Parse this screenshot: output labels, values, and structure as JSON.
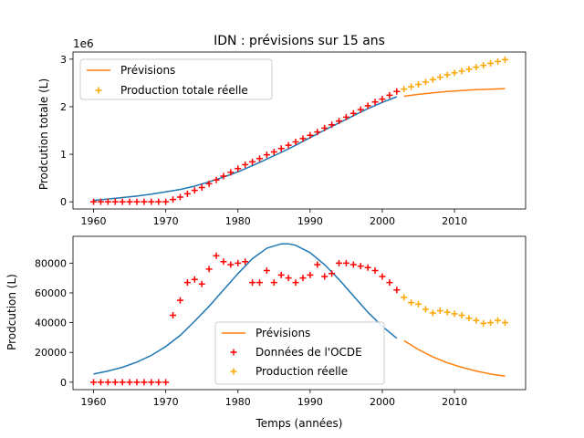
{
  "chart_data": [
    {
      "type": "line",
      "title": "IDN : prévisions sur 15 ans",
      "ylabel": "Prodcution totale (L)",
      "xlabel": "",
      "offset_label": "1e6",
      "xlim": [
        1957.15,
        2019.85
      ],
      "ylim": [
        -0.15,
        3.15
      ],
      "x_ticks": [
        1960,
        1970,
        1980,
        1990,
        2000,
        2010
      ],
      "x_tick_labels": [
        "1960",
        "1970",
        "1980",
        "1990",
        "2000",
        "2010"
      ],
      "y_ticks": [
        0,
        1,
        2,
        3
      ],
      "y_tick_labels": [
        "0",
        "1",
        "2",
        "3"
      ],
      "legend_position": "upper-left",
      "legend": [
        {
          "label": "Prévisions",
          "marker": "line",
          "color": "#ff7f0e"
        },
        {
          "label": "Production totale réelle",
          "marker": "plus",
          "color": "#ffa500"
        }
      ],
      "series": [
        {
          "name": "",
          "kind": "line",
          "color": "#1f77b4",
          "x": [
            1960,
            1962,
            1964,
            1966,
            1968,
            1970,
            1972,
            1974,
            1976,
            1978,
            1980,
            1982,
            1984,
            1986,
            1988,
            1990,
            1992,
            1994,
            1996,
            1998,
            2000,
            2002
          ],
          "y": [
            0.03,
            0.06,
            0.09,
            0.12,
            0.16,
            0.21,
            0.26,
            0.33,
            0.42,
            0.52,
            0.63,
            0.76,
            0.9,
            1.04,
            1.19,
            1.35,
            1.51,
            1.66,
            1.81,
            1.96,
            2.09,
            2.21
          ]
        },
        {
          "name": "Prévisions",
          "kind": "line",
          "color": "#ff7f0e",
          "x": [
            2003,
            2005,
            2007,
            2009,
            2011,
            2013,
            2015,
            2017
          ],
          "y": [
            2.22,
            2.26,
            2.29,
            2.32,
            2.34,
            2.36,
            2.37,
            2.38
          ]
        },
        {
          "name": "",
          "kind": "plus",
          "color": "#ff0000",
          "x": [
            1960,
            1961,
            1962,
            1963,
            1964,
            1965,
            1966,
            1967,
            1968,
            1969,
            1970,
            1971,
            1972,
            1973,
            1974,
            1975,
            1976,
            1977,
            1978,
            1979,
            1980,
            1981,
            1982,
            1983,
            1984,
            1985,
            1986,
            1987,
            1988,
            1989,
            1990,
            1991,
            1992,
            1993,
            1994,
            1995,
            1996,
            1997,
            1998,
            1999,
            2000,
            2001,
            2002
          ],
          "y": [
            0,
            0,
            0,
            0,
            0,
            0,
            0,
            0,
            0,
            0,
            0,
            0.05,
            0.1,
            0.17,
            0.24,
            0.3,
            0.38,
            0.46,
            0.54,
            0.62,
            0.7,
            0.78,
            0.84,
            0.91,
            0.99,
            1.05,
            1.12,
            1.19,
            1.26,
            1.33,
            1.4,
            1.47,
            1.55,
            1.62,
            1.7,
            1.78,
            1.86,
            1.94,
            2.02,
            2.1,
            2.16,
            2.24,
            2.32
          ]
        },
        {
          "name": "Production totale réelle",
          "kind": "plus",
          "color": "#ffa500",
          "x": [
            2003,
            2004,
            2005,
            2006,
            2007,
            2008,
            2009,
            2010,
            2011,
            2012,
            2013,
            2014,
            2015,
            2016,
            2017
          ],
          "y": [
            2.37,
            2.42,
            2.47,
            2.52,
            2.57,
            2.62,
            2.67,
            2.71,
            2.75,
            2.79,
            2.83,
            2.87,
            2.91,
            2.95,
            2.99
          ]
        }
      ]
    },
    {
      "type": "line",
      "title": "",
      "ylabel": "Prodcution (L)",
      "xlabel": "Temps (années)",
      "xlim": [
        1957.15,
        2019.85
      ],
      "ylim": [
        -5000,
        98000
      ],
      "x_ticks": [
        1960,
        1970,
        1980,
        1990,
        2000,
        2010
      ],
      "x_tick_labels": [
        "1960",
        "1970",
        "1980",
        "1990",
        "2000",
        "2010"
      ],
      "y_ticks": [
        0,
        20000,
        40000,
        60000,
        80000
      ],
      "y_tick_labels": [
        "0",
        "20000",
        "40000",
        "60000",
        "80000"
      ],
      "legend_position": "lower-center",
      "legend": [
        {
          "label": "Prévisions",
          "marker": "line",
          "color": "#ff7f0e"
        },
        {
          "label": "Données de l'OCDE",
          "marker": "plus",
          "color": "#ff0000"
        },
        {
          "label": "Production réelle",
          "marker": "plus",
          "color": "#ffa500"
        }
      ],
      "series": [
        {
          "name": "",
          "kind": "line",
          "color": "#1f77b4",
          "x": [
            1960,
            1962,
            1964,
            1966,
            1968,
            1970,
            1972,
            1974,
            1976,
            1978,
            1980,
            1982,
            1984,
            1986,
            1987,
            1988,
            1990,
            1992,
            1994,
            1996,
            1998,
            2000,
            2002
          ],
          "y": [
            5500,
            7500,
            10000,
            13500,
            18000,
            24000,
            31500,
            41000,
            51000,
            62000,
            73000,
            83000,
            90000,
            93000,
            93000,
            92000,
            87000,
            79000,
            69000,
            58000,
            47000,
            37500,
            29500
          ]
        },
        {
          "name": "Prévisions",
          "kind": "line",
          "color": "#ff7f0e",
          "x": [
            2003,
            2005,
            2007,
            2009,
            2011,
            2013,
            2015,
            2017
          ],
          "y": [
            28000,
            22000,
            17000,
            13000,
            10000,
            7500,
            5500,
            4000
          ]
        },
        {
          "name": "Données de l'OCDE",
          "kind": "plus",
          "color": "#ff0000",
          "x": [
            1960,
            1961,
            1962,
            1963,
            1964,
            1965,
            1966,
            1967,
            1968,
            1969,
            1970,
            1971,
            1972,
            1973,
            1974,
            1975,
            1976,
            1977,
            1978,
            1979,
            1980,
            1981,
            1982,
            1983,
            1984,
            1985,
            1986,
            1987,
            1988,
            1989,
            1990,
            1991,
            1992,
            1993,
            1994,
            1995,
            1996,
            1997,
            1998,
            1999,
            2000,
            2001,
            2002
          ],
          "y": [
            0,
            0,
            0,
            0,
            0,
            0,
            0,
            0,
            0,
            0,
            0,
            45000,
            55000,
            67000,
            69000,
            66000,
            76000,
            85000,
            81000,
            79000,
            80000,
            81000,
            67000,
            67000,
            75000,
            67000,
            72000,
            70000,
            67000,
            70000,
            72000,
            79000,
            71000,
            73000,
            80000,
            80000,
            79000,
            78000,
            77000,
            75000,
            71000,
            67000,
            62000
          ]
        },
        {
          "name": "Production réelle",
          "kind": "plus",
          "color": "#ffa500",
          "x": [
            2003,
            2004,
            2005,
            2006,
            2007,
            2008,
            2009,
            2010,
            2011,
            2012,
            2013,
            2014,
            2015,
            2016,
            2017
          ],
          "y": [
            57000,
            53500,
            52500,
            49000,
            46500,
            48000,
            47000,
            46000,
            45000,
            43000,
            41500,
            39500,
            40000,
            41500,
            40000
          ]
        }
      ]
    }
  ]
}
